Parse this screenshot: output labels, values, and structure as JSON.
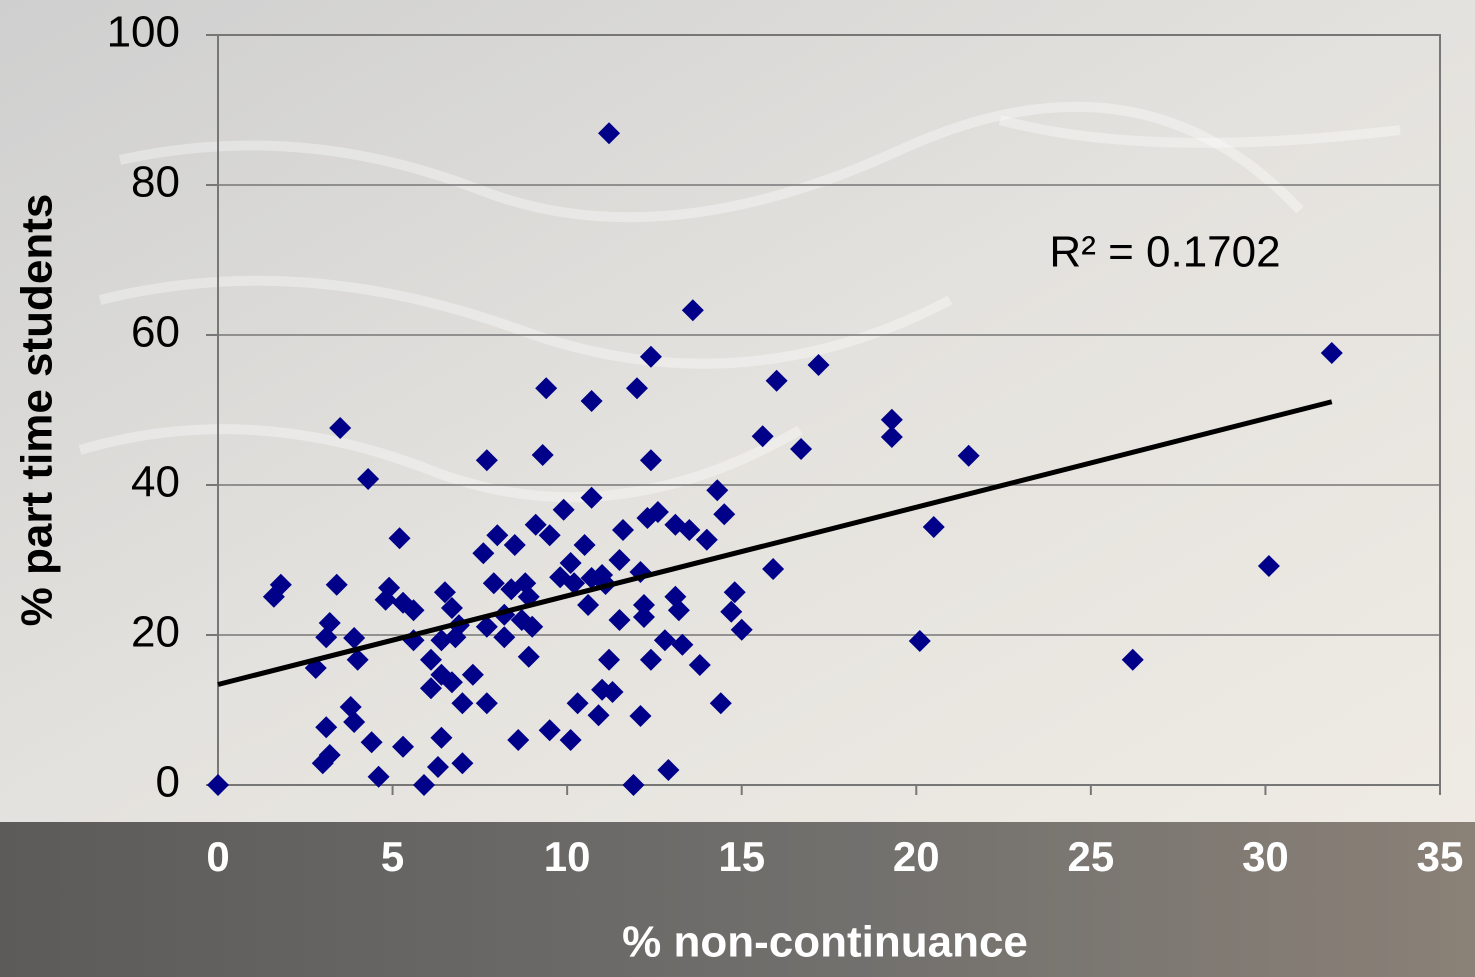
{
  "chart_data": {
    "type": "scatter",
    "x_label": "% non-continuance",
    "y_label": "% part time students",
    "annotation": "R² = 0.1702",
    "color": "#000088",
    "xlim": [
      0,
      35
    ],
    "xticks": [
      0,
      5,
      10,
      15,
      20,
      25,
      30,
      35
    ],
    "ylim": [
      0,
      100
    ],
    "yticks": [
      0,
      20,
      40,
      60,
      80,
      100
    ],
    "grid": true,
    "x": [
      0,
      11.2,
      13.6,
      31.9,
      12.4,
      17.2,
      9.4,
      12.0,
      16.0,
      10.7,
      19.3,
      19.3,
      3.5,
      15.6,
      16.7,
      21.5,
      7.7,
      9.3,
      12.4,
      4.3,
      14.3,
      10.7,
      9.9,
      14.5,
      12.6,
      12.3,
      20.5,
      9.1,
      13.1,
      13.5,
      11.6,
      9.5,
      14.0,
      5.2,
      8.0,
      8.5,
      10.5,
      7.6,
      10.1,
      30.1,
      15.9,
      11.5,
      11.0,
      9.8,
      12.1,
      10.2,
      3.4,
      1.8,
      1.6,
      4.9,
      6.5,
      7.9,
      8.8,
      8.4,
      11.1,
      14.8,
      13.1,
      8.9,
      4.8,
      5.3,
      5.6,
      6.7,
      10.6,
      12.2,
      13.2,
      14.7,
      12.2,
      11.5,
      8.2,
      8.7,
      3.2,
      9.0,
      15.0,
      6.9,
      7.7,
      8.2,
      3.1,
      3.9,
      5.6,
      6.4,
      6.8,
      12.8,
      13.3,
      20.1,
      4.0,
      8.9,
      12.4,
      13.8,
      11.2,
      26.2,
      6.1,
      2.8,
      6.4,
      7.3,
      6.1,
      6.7,
      11.0,
      11.3,
      10.3,
      7.0,
      7.7,
      14.4,
      3.8,
      10.9,
      12.1,
      3.9,
      3.1,
      9.5,
      8.6,
      10.1,
      6.4,
      4.4,
      5.3,
      3.2,
      3.0,
      7.0,
      6.3,
      12.9,
      4.6,
      5.9,
      11.9,
      10.7
    ],
    "values": [
      0,
      86.9,
      63.3,
      57.6,
      57.1,
      56.0,
      52.9,
      52.9,
      53.9,
      51.2,
      48.7,
      46.4,
      47.6,
      46.5,
      44.8,
      43.9,
      43.3,
      44.0,
      43.3,
      40.8,
      39.3,
      38.3,
      36.7,
      36.1,
      36.4,
      35.6,
      34.4,
      34.7,
      34.7,
      34.0,
      34.0,
      33.3,
      32.7,
      32.9,
      33.3,
      32.0,
      32.0,
      30.9,
      29.6,
      29.2,
      28.8,
      30.0,
      28.0,
      27.7,
      28.4,
      26.9,
      26.7,
      26.7,
      25.1,
      26.3,
      25.7,
      26.9,
      26.9,
      26.1,
      26.8,
      25.7,
      25.1,
      25.1,
      24.7,
      24.3,
      23.3,
      23.6,
      24.0,
      24.0,
      23.3,
      23.1,
      22.4,
      22.0,
      22.7,
      22.0,
      21.6,
      21.1,
      20.7,
      21.3,
      21.1,
      19.7,
      19.7,
      19.6,
      19.3,
      19.3,
      19.7,
      19.3,
      18.7,
      19.2,
      16.7,
      17.1,
      16.7,
      16.0,
      16.7,
      16.7,
      16.7,
      15.6,
      14.7,
      14.7,
      12.9,
      13.7,
      12.7,
      12.4,
      10.9,
      10.9,
      10.9,
      10.9,
      10.4,
      9.3,
      9.2,
      8.4,
      7.7,
      7.3,
      6.0,
      6.0,
      6.3,
      5.7,
      5.1,
      4.0,
      2.9,
      2.9,
      2.4,
      2.0,
      1.1,
      0,
      0,
      27.6
    ],
    "trendline": {
      "color": "#000000",
      "x": [
        0,
        31.9
      ],
      "y": [
        13.4,
        51.1
      ]
    }
  }
}
